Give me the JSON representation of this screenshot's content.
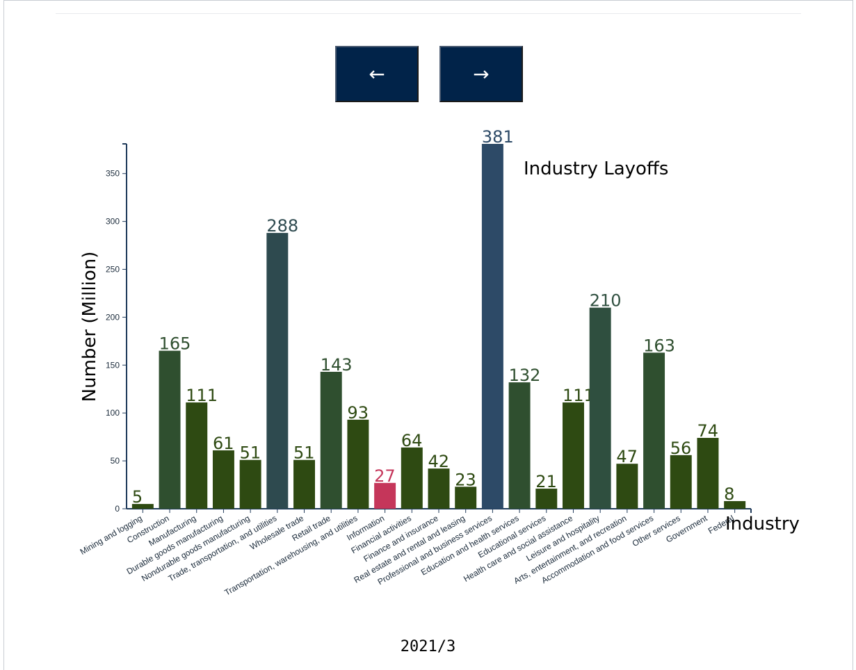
{
  "nav": {
    "prev_label": "←",
    "next_label": "→"
  },
  "date_label": "2021/3",
  "colors": {
    "default_bar": "#2e4a12",
    "dark_green": "#2f4f2f",
    "slate": "#2e4a4f",
    "navy_slate": "#2d4a67",
    "highlight": "#c5365a",
    "axis": "#1f3a5a",
    "nav_bg": "#012349"
  },
  "chart_data": {
    "type": "bar",
    "title": "Industry Layoffs",
    "xlabel": "Industry",
    "ylabel": "Number (Million)",
    "ylim": [
      0,
      381
    ],
    "yticks": [
      0,
      50,
      100,
      150,
      200,
      250,
      300,
      350
    ],
    "categories": [
      "Mining and logging",
      "Construction",
      "Manufacturing",
      "Durable goods manufacturing",
      "Nondurable goods manufacturing",
      "Trade, transportation, and utilities",
      "Wholesale trade",
      "Retail trade",
      "Transportation, warehousing, and utilities",
      "Information",
      "Financial activities",
      "Finance and insurance",
      "Real estate and rental and leasing",
      "Professional and business services",
      "Education and health services",
      "Educational services",
      "Health care and social assistance",
      "Leisure and hospitality",
      "Arts, entertainment, and recreation",
      "Accommodation and food services",
      "Other services",
      "Government",
      "Federal"
    ],
    "values": [
      5,
      165,
      111,
      61,
      51,
      288,
      51,
      143,
      93,
      27,
      64,
      42,
      23,
      381,
      132,
      21,
      111,
      210,
      47,
      163,
      56,
      74,
      8
    ],
    "bar_colors": [
      "#2e4a12",
      "#2f4f2f",
      "#2e4a12",
      "#2e4a12",
      "#2e4a12",
      "#2e4a4f",
      "#2e4a12",
      "#2f4f2f",
      "#2e4a12",
      "#c5365a",
      "#2e4a12",
      "#2e4a12",
      "#2e4a12",
      "#2d4a67",
      "#2f4f2f",
      "#2e4a12",
      "#2e4a12",
      "#2f4f3f",
      "#2e4a12",
      "#2f4f2f",
      "#2e4a12",
      "#2e4a12",
      "#2e4a12"
    ],
    "grid": false,
    "legend": "none"
  }
}
